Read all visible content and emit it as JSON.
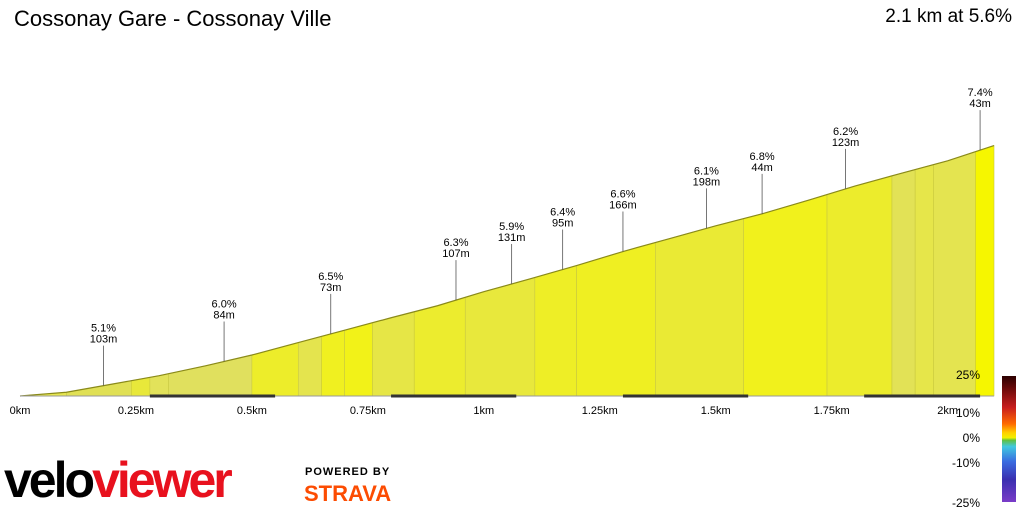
{
  "header": {
    "title": "Cossonay Gare - Cossonay Ville",
    "summary": "2.1 km at 5.6%"
  },
  "chart_data": {
    "type": "area",
    "title": "Cossonay Gare - Cossonay Ville",
    "x_unit": "km",
    "xlim": [
      0,
      2.1
    ],
    "x_ticks": [
      {
        "value": 0,
        "label": "0km"
      },
      {
        "value": 0.25,
        "label": "0.25km"
      },
      {
        "value": 0.5,
        "label": "0.5km"
      },
      {
        "value": 0.75,
        "label": "0.75km"
      },
      {
        "value": 1.0,
        "label": "1km"
      },
      {
        "value": 1.25,
        "label": "1.25km"
      },
      {
        "value": 1.5,
        "label": "1.5km"
      },
      {
        "value": 1.75,
        "label": "1.75km"
      },
      {
        "value": 2.0,
        "label": "2km"
      }
    ],
    "profile": {
      "x": [
        0,
        0.02,
        0.1,
        0.2,
        0.3,
        0.4,
        0.5,
        0.6,
        0.7,
        0.8,
        0.9,
        1.0,
        1.1,
        1.2,
        1.3,
        1.4,
        1.5,
        1.6,
        1.7,
        1.8,
        1.9,
        2.0,
        2.1
      ],
      "y": [
        0,
        0.4,
        1.8,
        5.8,
        9.8,
        14.6,
        19.8,
        25.8,
        31.8,
        37.8,
        43.6,
        50.4,
        56.6,
        63.0,
        69.8,
        76.0,
        82.2,
        88.0,
        94.6,
        101.4,
        107.6,
        113.6,
        121.0
      ]
    },
    "annotations": [
      {
        "x": 0.18,
        "gradient": "5.1%",
        "length": "103m"
      },
      {
        "x": 0.44,
        "gradient": "6.0%",
        "length": "84m"
      },
      {
        "x": 0.67,
        "gradient": "6.5%",
        "length": "73m"
      },
      {
        "x": 0.94,
        "gradient": "6.3%",
        "length": "107m"
      },
      {
        "x": 1.06,
        "gradient": "5.9%",
        "length": "131m"
      },
      {
        "x": 1.17,
        "gradient": "6.4%",
        "length": "95m"
      },
      {
        "x": 1.3,
        "gradient": "6.6%",
        "length": "166m"
      },
      {
        "x": 1.48,
        "gradient": "6.1%",
        "length": "198m"
      },
      {
        "x": 1.6,
        "gradient": "6.8%",
        "length": "44m"
      },
      {
        "x": 1.78,
        "gradient": "6.2%",
        "length": "123m"
      },
      {
        "x": 2.07,
        "gradient": "7.4%",
        "length": "43m"
      }
    ],
    "segments": [
      {
        "x0": 0.0,
        "x1": 0.02,
        "color": "#e3e35a"
      },
      {
        "x0": 0.02,
        "x1": 0.1,
        "color": "#e6e650"
      },
      {
        "x0": 0.1,
        "x1": 0.24,
        "color": "#e0e055"
      },
      {
        "x0": 0.24,
        "x1": 0.28,
        "color": "#e8e83a"
      },
      {
        "x0": 0.28,
        "x1": 0.32,
        "color": "#e2e25a"
      },
      {
        "x0": 0.32,
        "x1": 0.5,
        "color": "#e0e05e"
      },
      {
        "x0": 0.5,
        "x1": 0.6,
        "color": "#eded2a"
      },
      {
        "x0": 0.6,
        "x1": 0.65,
        "color": "#e4e44e"
      },
      {
        "x0": 0.65,
        "x1": 0.7,
        "color": "#f0f020"
      },
      {
        "x0": 0.7,
        "x1": 0.76,
        "color": "#f2f218"
      },
      {
        "x0": 0.76,
        "x1": 0.85,
        "color": "#e6e646"
      },
      {
        "x0": 0.85,
        "x1": 0.96,
        "color": "#ecec2e"
      },
      {
        "x0": 0.96,
        "x1": 1.11,
        "color": "#e8e83c"
      },
      {
        "x0": 1.11,
        "x1": 1.2,
        "color": "#eeee26"
      },
      {
        "x0": 1.2,
        "x1": 1.37,
        "color": "#efef22"
      },
      {
        "x0": 1.37,
        "x1": 1.56,
        "color": "#eaea34"
      },
      {
        "x0": 1.56,
        "x1": 1.74,
        "color": "#f1f11c"
      },
      {
        "x0": 1.74,
        "x1": 1.88,
        "color": "#ecec2c"
      },
      {
        "x0": 1.88,
        "x1": 1.93,
        "color": "#e2e256"
      },
      {
        "x0": 1.93,
        "x1": 1.97,
        "color": "#e6e64a"
      },
      {
        "x0": 1.97,
        "x1": 2.06,
        "color": "#e4e450"
      },
      {
        "x0": 2.06,
        "x1": 2.1,
        "color": "#f6f600"
      }
    ],
    "legend": {
      "ticks": [
        "25%",
        "10%",
        "0%",
        "-10%",
        "-25%"
      ]
    }
  },
  "branding": {
    "logo_part1": "velo",
    "logo_part2": "viewer",
    "powered_by": "POWERED BY",
    "strava": "STRAVA",
    "accent_red": "#e8111e",
    "strava_orange": "#fc4c02"
  }
}
